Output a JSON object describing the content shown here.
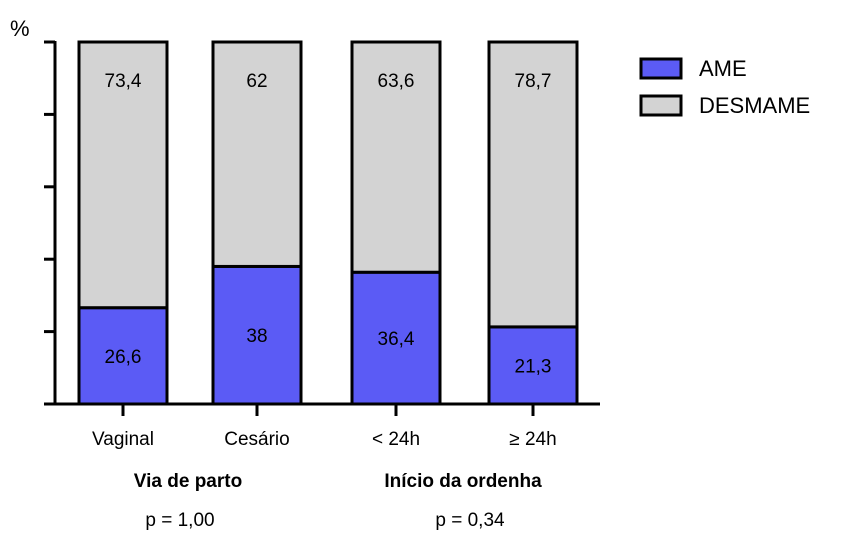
{
  "chart_data": {
    "type": "bar",
    "stacked": true,
    "percent_stacked": true,
    "ylabel": "%",
    "ylim": [
      0,
      100
    ],
    "y_tick_count": 6,
    "y_tick_labels_shown": false,
    "categories": [
      "Vaginal",
      "Cesário",
      "< 24h",
      "≥ 24h"
    ],
    "series": [
      {
        "name": "AME",
        "values": [
          26.6,
          38,
          36.4,
          21.3
        ],
        "labels": [
          "26,6",
          "38",
          "36,4",
          "21,3"
        ],
        "color": "#5b5bf5"
      },
      {
        "name": "DESMAME",
        "values": [
          73.4,
          62,
          63.6,
          78.7
        ],
        "labels": [
          "73,4",
          "62",
          "63,6",
          "78,7"
        ],
        "color": "#d3d3d3"
      }
    ],
    "groups": [
      {
        "label": "Via de parto",
        "p_text": "p = 1,00"
      },
      {
        "label": "Início da ordenha",
        "p_text": "p = 0,34"
      }
    ],
    "legend": {
      "position": "top-right"
    },
    "grid": false
  }
}
